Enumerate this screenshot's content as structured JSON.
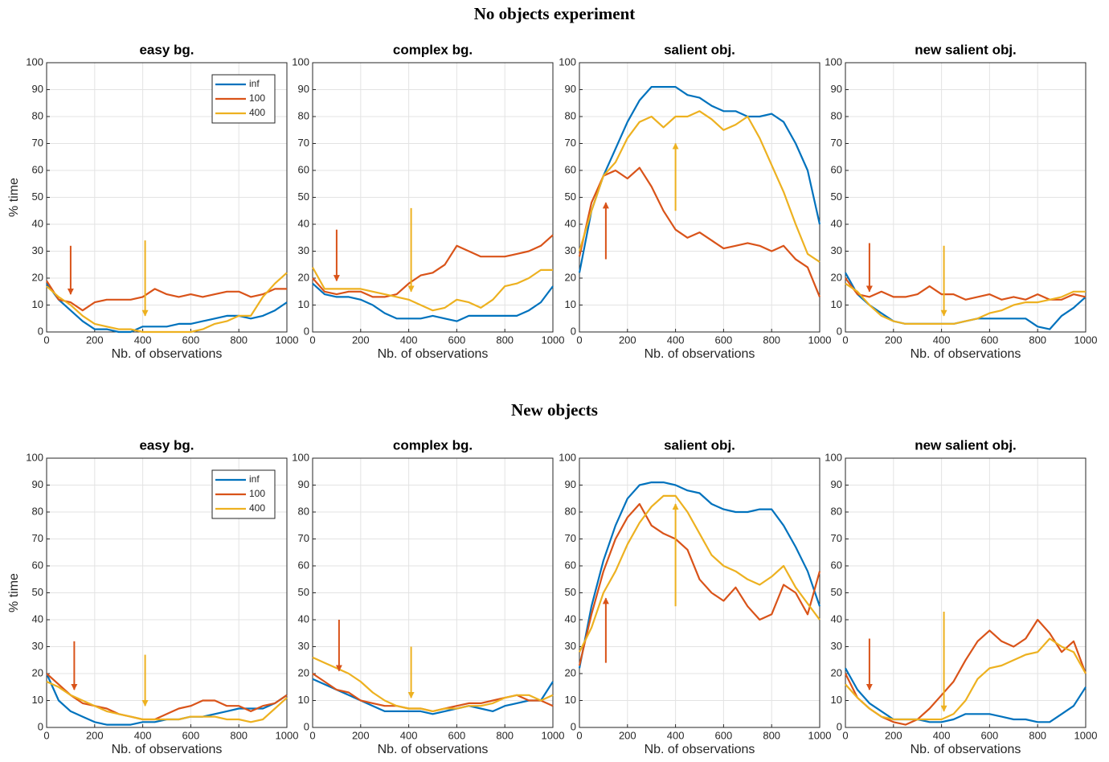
{
  "figure_titles": [
    "No objects experiment",
    "New objects"
  ],
  "chart_data": [
    {
      "type": "line",
      "title": "easy bg.",
      "xlabel": "Nb. of observations",
      "ylabel": "% time",
      "legend": "upper right",
      "grid": true,
      "xlim": [
        0,
        1000
      ],
      "ylim": [
        0,
        100
      ],
      "xticks": [
        0,
        200,
        400,
        600,
        800,
        1000
      ],
      "yticks": [
        0,
        10,
        20,
        30,
        40,
        50,
        60,
        70,
        80,
        90,
        100
      ],
      "x": [
        0,
        50,
        100,
        150,
        200,
        250,
        300,
        350,
        400,
        450,
        500,
        550,
        600,
        650,
        700,
        750,
        800,
        850,
        900,
        950,
        1000
      ],
      "series": [
        {
          "name": "inf",
          "color": "#0072BD",
          "values": [
            18,
            12,
            8,
            4,
            1,
            1,
            0,
            0,
            2,
            2,
            2,
            3,
            3,
            4,
            5,
            6,
            6,
            5,
            6,
            8,
            11
          ]
        },
        {
          "name": "100",
          "color": "#D95319",
          "values": [
            19,
            12,
            11,
            8,
            11,
            12,
            12,
            12,
            13,
            16,
            14,
            13,
            14,
            13,
            14,
            15,
            15,
            13,
            14,
            16,
            16
          ]
        },
        {
          "name": "400",
          "color": "#EDB120",
          "values": [
            17,
            13,
            10,
            6,
            3,
            2,
            1,
            1,
            0,
            0,
            0,
            0,
            0,
            1,
            3,
            4,
            6,
            6,
            13,
            18,
            22
          ]
        }
      ],
      "arrows": [
        {
          "color": "#D95319",
          "x": 100,
          "from": 32,
          "to": 14
        },
        {
          "color": "#EDB120",
          "x": 410,
          "from": 34,
          "to": 6
        }
      ]
    },
    {
      "type": "line",
      "title": "complex bg.",
      "xlabel": "Nb. of observations",
      "grid": true,
      "xlim": [
        0,
        1000
      ],
      "ylim": [
        0,
        100
      ],
      "xticks": [
        0,
        200,
        400,
        600,
        800,
        1000
      ],
      "yticks": [
        0,
        10,
        20,
        30,
        40,
        50,
        60,
        70,
        80,
        90,
        100
      ],
      "x": [
        0,
        50,
        100,
        150,
        200,
        250,
        300,
        350,
        400,
        450,
        500,
        550,
        600,
        650,
        700,
        750,
        800,
        850,
        900,
        950,
        1000
      ],
      "series": [
        {
          "name": "inf",
          "color": "#0072BD",
          "values": [
            18,
            14,
            13,
            13,
            12,
            10,
            7,
            5,
            5,
            5,
            6,
            5,
            4,
            6,
            6,
            6,
            6,
            6,
            8,
            11,
            17
          ]
        },
        {
          "name": "100",
          "color": "#D95319",
          "values": [
            20,
            15,
            14,
            15,
            15,
            13,
            13,
            14,
            18,
            21,
            22,
            25,
            32,
            30,
            28,
            28,
            28,
            29,
            30,
            32,
            36
          ]
        },
        {
          "name": "400",
          "color": "#EDB120",
          "values": [
            24,
            16,
            16,
            16,
            16,
            15,
            14,
            13,
            12,
            10,
            8,
            9,
            12,
            11,
            9,
            12,
            17,
            18,
            20,
            23,
            23
          ]
        }
      ],
      "arrows": [
        {
          "color": "#D95319",
          "x": 100,
          "from": 38,
          "to": 19
        },
        {
          "color": "#EDB120",
          "x": 410,
          "from": 46,
          "to": 15
        }
      ]
    },
    {
      "type": "line",
      "title": "salient obj.",
      "xlabel": "Nb. of observations",
      "grid": true,
      "xlim": [
        0,
        1000
      ],
      "ylim": [
        0,
        100
      ],
      "xticks": [
        0,
        200,
        400,
        600,
        800,
        1000
      ],
      "yticks": [
        0,
        10,
        20,
        30,
        40,
        50,
        60,
        70,
        80,
        90,
        100
      ],
      "x": [
        0,
        50,
        100,
        150,
        200,
        250,
        300,
        350,
        400,
        450,
        500,
        550,
        600,
        650,
        700,
        750,
        800,
        850,
        900,
        950,
        1000
      ],
      "series": [
        {
          "name": "inf",
          "color": "#0072BD",
          "values": [
            22,
            45,
            58,
            68,
            78,
            86,
            91,
            91,
            91,
            88,
            87,
            84,
            82,
            82,
            80,
            80,
            81,
            78,
            70,
            60,
            40
          ]
        },
        {
          "name": "100",
          "color": "#D95319",
          "values": [
            28,
            48,
            58,
            60,
            57,
            61,
            54,
            45,
            38,
            35,
            37,
            34,
            31,
            32,
            33,
            32,
            30,
            32,
            27,
            24,
            13
          ]
        },
        {
          "name": "400",
          "color": "#EDB120",
          "values": [
            30,
            45,
            58,
            63,
            72,
            78,
            80,
            76,
            80,
            80,
            82,
            79,
            75,
            77,
            80,
            72,
            62,
            52,
            40,
            29,
            26
          ]
        }
      ],
      "arrows": [
        {
          "color": "#D95319",
          "x": 110,
          "from": 27,
          "to": 48
        },
        {
          "color": "#EDB120",
          "x": 400,
          "from": 45,
          "to": 70
        }
      ]
    },
    {
      "type": "line",
      "title": "new salient obj.",
      "xlabel": "Nb. of observations",
      "grid": true,
      "xlim": [
        0,
        1000
      ],
      "ylim": [
        0,
        100
      ],
      "xticks": [
        0,
        200,
        400,
        600,
        800,
        1000
      ],
      "yticks": [
        0,
        10,
        20,
        30,
        40,
        50,
        60,
        70,
        80,
        90,
        100
      ],
      "x": [
        0,
        50,
        100,
        150,
        200,
        250,
        300,
        350,
        400,
        450,
        500,
        550,
        600,
        650,
        700,
        750,
        800,
        850,
        900,
        950,
        1000
      ],
      "series": [
        {
          "name": "inf",
          "color": "#0072BD",
          "values": [
            22,
            14,
            10,
            7,
            4,
            3,
            3,
            3,
            3,
            3,
            4,
            5,
            5,
            5,
            5,
            5,
            2,
            1,
            6,
            9,
            13
          ]
        },
        {
          "name": "100",
          "color": "#D95319",
          "values": [
            20,
            14,
            13,
            15,
            13,
            13,
            14,
            17,
            14,
            14,
            12,
            13,
            14,
            12,
            13,
            12,
            14,
            12,
            12,
            14,
            13
          ]
        },
        {
          "name": "400",
          "color": "#EDB120",
          "values": [
            18,
            15,
            10,
            6,
            4,
            3,
            3,
            3,
            3,
            3,
            4,
            5,
            7,
            8,
            10,
            11,
            11,
            12,
            13,
            15,
            15
          ]
        }
      ],
      "arrows": [
        {
          "color": "#D95319",
          "x": 100,
          "from": 33,
          "to": 15
        },
        {
          "color": "#EDB120",
          "x": 410,
          "from": 32,
          "to": 6
        }
      ]
    },
    {
      "type": "line",
      "title": "easy bg.",
      "xlabel": "Nb. of observations",
      "ylabel": "% time",
      "legend": "upper right",
      "grid": true,
      "xlim": [
        0,
        1000
      ],
      "ylim": [
        0,
        100
      ],
      "xticks": [
        0,
        200,
        400,
        600,
        800,
        1000
      ],
      "yticks": [
        0,
        10,
        20,
        30,
        40,
        50,
        60,
        70,
        80,
        90,
        100
      ],
      "x": [
        0,
        50,
        100,
        150,
        200,
        250,
        300,
        350,
        400,
        450,
        500,
        550,
        600,
        650,
        700,
        750,
        800,
        850,
        900,
        950,
        1000
      ],
      "series": [
        {
          "name": "inf",
          "color": "#0072BD",
          "values": [
            20,
            10,
            6,
            4,
            2,
            1,
            1,
            1,
            2,
            2,
            3,
            3,
            4,
            4,
            5,
            6,
            7,
            7,
            7,
            9,
            12
          ]
        },
        {
          "name": "100",
          "color": "#D95319",
          "values": [
            20,
            16,
            12,
            9,
            8,
            7,
            5,
            4,
            3,
            3,
            5,
            7,
            8,
            10,
            10,
            8,
            8,
            6,
            8,
            9,
            12
          ]
        },
        {
          "name": "400",
          "color": "#EDB120",
          "values": [
            17,
            15,
            12,
            10,
            8,
            6,
            5,
            4,
            3,
            3,
            3,
            3,
            4,
            4,
            4,
            3,
            3,
            2,
            3,
            7,
            11
          ]
        }
      ],
      "arrows": [
        {
          "color": "#D95319",
          "x": 115,
          "from": 32,
          "to": 14
        },
        {
          "color": "#EDB120",
          "x": 410,
          "from": 27,
          "to": 8
        }
      ]
    },
    {
      "type": "line",
      "title": "complex bg.",
      "xlabel": "Nb. of observations",
      "grid": true,
      "xlim": [
        0,
        1000
      ],
      "ylim": [
        0,
        100
      ],
      "xticks": [
        0,
        200,
        400,
        600,
        800,
        1000
      ],
      "yticks": [
        0,
        10,
        20,
        30,
        40,
        50,
        60,
        70,
        80,
        90,
        100
      ],
      "x": [
        0,
        50,
        100,
        150,
        200,
        250,
        300,
        350,
        400,
        450,
        500,
        550,
        600,
        650,
        700,
        750,
        800,
        850,
        900,
        950,
        1000
      ],
      "series": [
        {
          "name": "inf",
          "color": "#0072BD",
          "values": [
            18,
            16,
            14,
            12,
            10,
            8,
            6,
            6,
            6,
            6,
            5,
            6,
            7,
            8,
            7,
            6,
            8,
            9,
            10,
            10,
            17
          ]
        },
        {
          "name": "100",
          "color": "#D95319",
          "values": [
            20,
            17,
            14,
            13,
            10,
            9,
            8,
            8,
            7,
            7,
            6,
            7,
            8,
            9,
            9,
            10,
            11,
            12,
            10,
            10,
            8
          ]
        },
        {
          "name": "400",
          "color": "#EDB120",
          "values": [
            26,
            24,
            22,
            20,
            17,
            13,
            10,
            8,
            7,
            7,
            6,
            7,
            7,
            8,
            8,
            9,
            11,
            12,
            12,
            10,
            12
          ]
        }
      ],
      "arrows": [
        {
          "color": "#D95319",
          "x": 110,
          "from": 40,
          "to": 21
        },
        {
          "color": "#EDB120",
          "x": 410,
          "from": 30,
          "to": 11
        }
      ]
    },
    {
      "type": "line",
      "title": "salient obj.",
      "xlabel": "Nb. of observations",
      "grid": true,
      "xlim": [
        0,
        1000
      ],
      "ylim": [
        0,
        100
      ],
      "xticks": [
        0,
        200,
        400,
        600,
        800,
        1000
      ],
      "yticks": [
        0,
        10,
        20,
        30,
        40,
        50,
        60,
        70,
        80,
        90,
        100
      ],
      "x": [
        0,
        50,
        100,
        150,
        200,
        250,
        300,
        350,
        400,
        450,
        500,
        550,
        600,
        650,
        700,
        750,
        800,
        850,
        900,
        950,
        1000
      ],
      "series": [
        {
          "name": "inf",
          "color": "#0072BD",
          "values": [
            22,
            45,
            62,
            75,
            85,
            90,
            91,
            91,
            90,
            88,
            87,
            83,
            81,
            80,
            80,
            81,
            81,
            75,
            67,
            58,
            45
          ]
        },
        {
          "name": "100",
          "color": "#D95319",
          "values": [
            23,
            42,
            58,
            70,
            78,
            83,
            75,
            72,
            70,
            66,
            55,
            50,
            47,
            52,
            45,
            40,
            42,
            53,
            50,
            42,
            58
          ]
        },
        {
          "name": "400",
          "color": "#EDB120",
          "values": [
            28,
            37,
            50,
            58,
            68,
            76,
            82,
            86,
            86,
            80,
            72,
            64,
            60,
            58,
            55,
            53,
            56,
            60,
            52,
            46,
            40
          ]
        }
      ],
      "arrows": [
        {
          "color": "#D95319",
          "x": 110,
          "from": 24,
          "to": 48
        },
        {
          "color": "#EDB120",
          "x": 400,
          "from": 45,
          "to": 83
        }
      ]
    },
    {
      "type": "line",
      "title": "new salient obj.",
      "xlabel": "Nb. of observations",
      "grid": true,
      "xlim": [
        0,
        1000
      ],
      "ylim": [
        0,
        100
      ],
      "xticks": [
        0,
        200,
        400,
        600,
        800,
        1000
      ],
      "yticks": [
        0,
        10,
        20,
        30,
        40,
        50,
        60,
        70,
        80,
        90,
        100
      ],
      "x": [
        0,
        50,
        100,
        150,
        200,
        250,
        300,
        350,
        400,
        450,
        500,
        550,
        600,
        650,
        700,
        750,
        800,
        850,
        900,
        950,
        1000
      ],
      "series": [
        {
          "name": "inf",
          "color": "#0072BD",
          "values": [
            22,
            14,
            9,
            6,
            3,
            3,
            3,
            2,
            2,
            3,
            5,
            5,
            5,
            4,
            3,
            3,
            2,
            2,
            5,
            8,
            15
          ]
        },
        {
          "name": "100",
          "color": "#D95319",
          "values": [
            20,
            11,
            7,
            4,
            2,
            1,
            3,
            7,
            12,
            17,
            25,
            32,
            36,
            32,
            30,
            33,
            40,
            35,
            28,
            32,
            20
          ]
        },
        {
          "name": "400",
          "color": "#EDB120",
          "values": [
            16,
            11,
            7,
            4,
            3,
            3,
            3,
            3,
            3,
            5,
            10,
            18,
            22,
            23,
            25,
            27,
            28,
            33,
            30,
            28,
            20
          ]
        }
      ],
      "arrows": [
        {
          "color": "#D95319",
          "x": 100,
          "from": 33,
          "to": 14
        },
        {
          "color": "#EDB120",
          "x": 410,
          "from": 43,
          "to": 6
        }
      ]
    }
  ]
}
